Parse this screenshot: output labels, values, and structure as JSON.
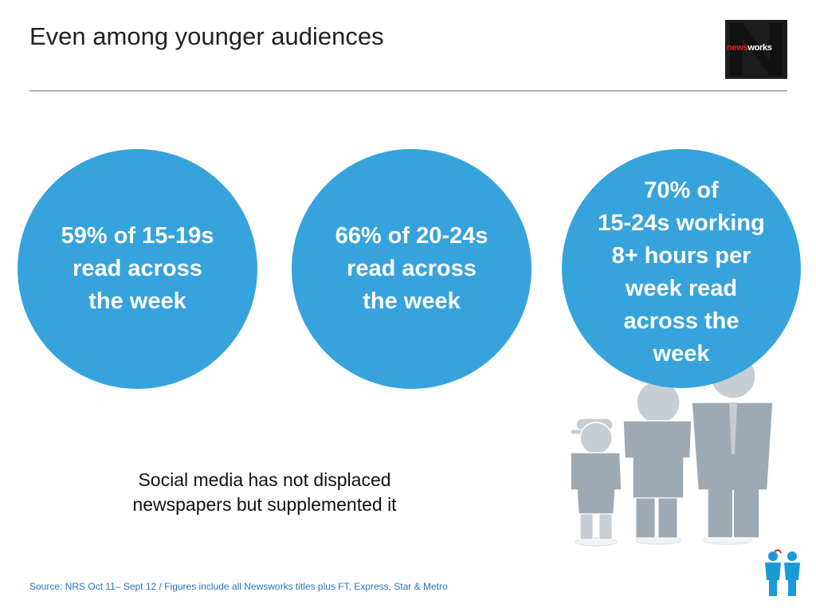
{
  "header": {
    "title": "Even among younger audiences",
    "logo": {
      "part1": "news",
      "part2": "works"
    }
  },
  "stats": [
    {
      "text": "59% of 15-19s\nread across\nthe week"
    },
    {
      "text": "66% of 20-24s\nread across\nthe week"
    },
    {
      "text": "70% of\n15-24s working\n8+ hours per\nweek read\nacross the\nweek"
    }
  ],
  "caption": "Social media has not displaced\nnewspapers but supplemented it",
  "footer": {
    "source": "Source: NRS Oct 11– Sept 12 / Figures include all Newsworks titles plus FT, Express, Star & Metro"
  },
  "colors": {
    "circle": "#36a3dc",
    "figure": "#9eaab3",
    "accent_red": "#e2231a",
    "mini_figure": "#1a9ad6"
  },
  "icons": [
    "people-illustration",
    "mini-people-icon",
    "newsworks-logo"
  ]
}
